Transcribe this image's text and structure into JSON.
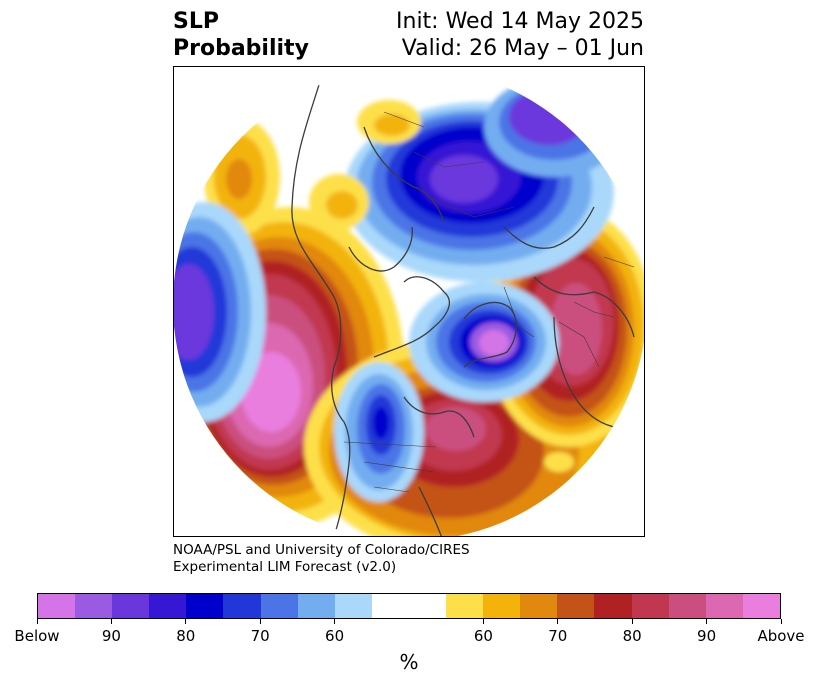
{
  "title": {
    "left_line1": "SLP",
    "left_line2": "Probability",
    "right_line1": "Init: Wed 14 May 2025",
    "right_line2": "Valid: 26 May – 01 Jun"
  },
  "credit": {
    "line1": "NOAA/PSL and University of Colorado/CIRES",
    "line2": "Experimental LIM Forecast (v2.0)"
  },
  "colorbar": {
    "colors": [
      "#d474e6",
      "#9a5ae2",
      "#6a37dd",
      "#3517d4",
      "#0000cc",
      "#2137d8",
      "#4b74e6",
      "#73adf0",
      "#a9d8fb",
      "#ffffff",
      "#ffffff",
      "#fde049",
      "#f3b30b",
      "#e1880f",
      "#c45318",
      "#b02124",
      "#c13750",
      "#ca4f7e",
      "#dc68b1",
      "#e97ede"
    ],
    "tick_labels": [
      "Below",
      "90",
      "80",
      "70",
      "60",
      "60",
      "70",
      "80",
      "90",
      "Above"
    ],
    "unit": "%"
  },
  "map": {
    "projection": "north polar stereographic",
    "palette": {
      "above_light": "#fde049",
      "above_mid": "#e1880f",
      "above_dark": "#b02124",
      "above_peak": "#e97ede",
      "below_light": "#a9d8fb",
      "below_mid": "#4b74e6",
      "below_dark": "#0000cc",
      "below_peak": "#9a5ae2",
      "coast": "#3c3c3c"
    }
  }
}
